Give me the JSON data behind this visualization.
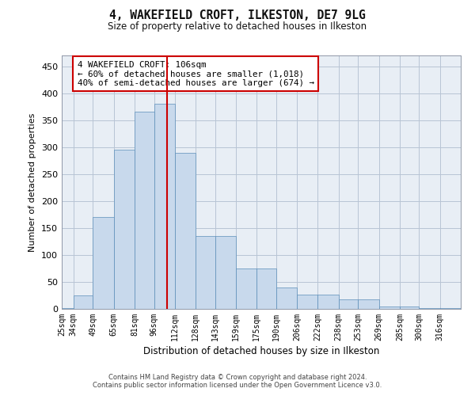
{
  "title": "4, WAKEFIELD CROFT, ILKESTON, DE7 9LG",
  "subtitle": "Size of property relative to detached houses in Ilkeston",
  "xlabel": "Distribution of detached houses by size in Ilkeston",
  "ylabel": "Number of detached properties",
  "annotation_title": "4 WAKEFIELD CROFT: 106sqm",
  "annotation_line1": "← 60% of detached houses are smaller (1,018)",
  "annotation_line2": "40% of semi-detached houses are larger (674) →",
  "footer1": "Contains HM Land Registry data © Crown copyright and database right 2024.",
  "footer2": "Contains public sector information licensed under the Open Government Licence v3.0.",
  "bin_edges": [
    25,
    34,
    49,
    65,
    81,
    96,
    112,
    128,
    143,
    159,
    175,
    190,
    206,
    222,
    238,
    253,
    269,
    285,
    300,
    316,
    332
  ],
  "bar_heights": [
    2,
    25,
    170,
    295,
    365,
    380,
    290,
    135,
    135,
    75,
    75,
    40,
    27,
    27,
    18,
    18,
    5,
    5,
    2,
    2
  ],
  "property_size": 106,
  "bar_color": "#c8d9ec",
  "bar_edge_color": "#5b8db8",
  "vline_color": "#cc0000",
  "bg_color": "#e8eef5",
  "fig_bg": "#ffffff",
  "grid_color": "#b8c4d4",
  "ann_edge_color": "#cc0000",
  "ylim": [
    0,
    470
  ],
  "yticks": [
    0,
    50,
    100,
    150,
    200,
    250,
    300,
    350,
    400,
    450
  ],
  "xtick_labels": [
    "25sqm",
    "34sqm",
    "49sqm",
    "65sqm",
    "81sqm",
    "96sqm",
    "112sqm",
    "128sqm",
    "143sqm",
    "159sqm",
    "175sqm",
    "190sqm",
    "206sqm",
    "222sqm",
    "238sqm",
    "253sqm",
    "269sqm",
    "285sqm",
    "300sqm",
    "316sqm"
  ]
}
